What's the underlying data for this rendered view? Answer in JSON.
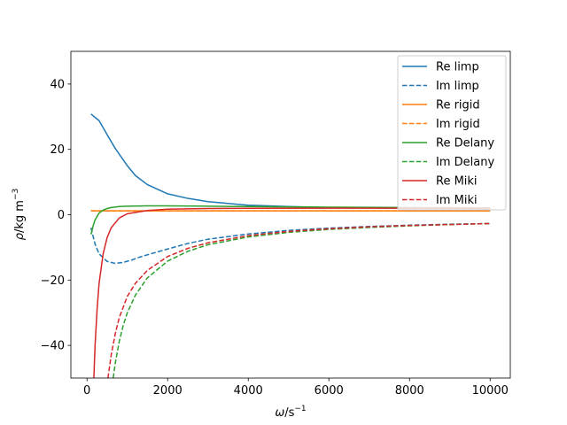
{
  "chart_data": {
    "type": "line",
    "xlabel": {
      "main": "ω",
      "unit": "/s",
      "sup": "−1"
    },
    "ylabel": {
      "main": "ρ",
      "unit": "/kg m",
      "sup": "−3"
    },
    "xlim": [
      -400,
      10500
    ],
    "ylim": [
      -50,
      50
    ],
    "x_ticks": [
      0,
      2000,
      4000,
      6000,
      8000,
      10000
    ],
    "x_tick_labels": [
      "0",
      "2000",
      "4000",
      "6000",
      "8000",
      "10000"
    ],
    "y_ticks": [
      -40,
      -20,
      0,
      20,
      40
    ],
    "y_tick_labels": [
      "−40",
      "−20",
      "0",
      "20",
      "40"
    ],
    "grid": false,
    "legend_position": "top-right",
    "series": [
      {
        "name": "Re limp",
        "color": "#1f77b4",
        "style": "solid",
        "x": [
          100,
          300,
          500,
          700,
          1000,
          1200,
          1500,
          2000,
          2500,
          3000,
          4000,
          5000,
          6000,
          7000,
          8000,
          9000,
          10000
        ],
        "y": [
          30.8,
          28.8,
          24.5,
          20.3,
          15.0,
          12.0,
          9.2,
          6.4,
          5.0,
          4.0,
          2.9,
          2.5,
          2.2,
          2.1,
          2.0,
          1.95,
          1.9
        ]
      },
      {
        "name": "Im limp",
        "color": "#1f77b4",
        "style": "dashed",
        "x": [
          100,
          200,
          300,
          500,
          700,
          900,
          1100,
          1300,
          1600,
          2000,
          2500,
          3000,
          4000,
          5000,
          6000,
          7000,
          8000,
          9000,
          10000
        ],
        "y": [
          -4.0,
          -9.0,
          -12.0,
          -14.3,
          -14.9,
          -14.6,
          -13.9,
          -13.0,
          -11.9,
          -10.5,
          -8.8,
          -7.5,
          -5.9,
          -4.8,
          -4.1,
          -3.6,
          -3.2,
          -2.9,
          -2.7
        ]
      },
      {
        "name": "Re rigid",
        "color": "#ff7f0e",
        "style": "solid",
        "x": [
          100,
          10000
        ],
        "y": [
          1.2,
          1.2
        ]
      },
      {
        "name": "Im rigid",
        "color": "#ff7f0e",
        "style": "dashed",
        "x": [
          100,
          10000
        ],
        "y": [
          1.2,
          1.2
        ]
      },
      {
        "name": "Re Delany",
        "color": "#2ca02c",
        "style": "solid",
        "x": [
          100,
          150,
          200,
          300,
          400,
          500,
          600,
          800,
          1000,
          1500,
          2000,
          3000,
          4000,
          5000,
          6000,
          8000,
          10000
        ],
        "y": [
          -6.0,
          -3.5,
          -1.6,
          0.5,
          1.4,
          1.9,
          2.2,
          2.5,
          2.6,
          2.7,
          2.7,
          2.6,
          2.5,
          2.4,
          2.3,
          2.2,
          2.1
        ]
      },
      {
        "name": "Im Delany",
        "color": "#2ca02c",
        "style": "dashed",
        "x": [
          650,
          700,
          800,
          900,
          1000,
          1200,
          1500,
          2000,
          2500,
          3000,
          4000,
          5000,
          6000,
          7000,
          8000,
          9000,
          10000
        ],
        "y": [
          -50,
          -45.5,
          -38.8,
          -33.8,
          -30.0,
          -24.6,
          -19.3,
          -14.2,
          -11.2,
          -9.2,
          -6.8,
          -5.4,
          -4.5,
          -3.9,
          -3.4,
          -3.0,
          -2.7
        ]
      },
      {
        "name": "Re Miki",
        "color": "#d62728",
        "style": "solid",
        "x": [
          170,
          200,
          250,
          300,
          400,
          500,
          600,
          800,
          1000,
          1500,
          2000,
          3000,
          4000,
          6000,
          8000,
          10000
        ],
        "y": [
          -50,
          -40.0,
          -29.0,
          -21.0,
          -12.0,
          -7.0,
          -4.0,
          -1.0,
          0.3,
          1.3,
          1.7,
          1.9,
          1.95,
          2.0,
          2.0,
          2.0
        ]
      },
      {
        "name": "Im Miki",
        "color": "#d62728",
        "style": "dashed",
        "x": [
          520,
          600,
          700,
          800,
          1000,
          1200,
          1500,
          2000,
          2500,
          3000,
          4000,
          5000,
          6000,
          7000,
          8000,
          9000,
          10000
        ],
        "y": [
          -50,
          -43.0,
          -36.5,
          -31.5,
          -25.0,
          -21.0,
          -17.0,
          -12.8,
          -10.3,
          -8.6,
          -6.4,
          -5.1,
          -4.3,
          -3.7,
          -3.3,
          -3.0,
          -2.7
        ]
      }
    ]
  }
}
